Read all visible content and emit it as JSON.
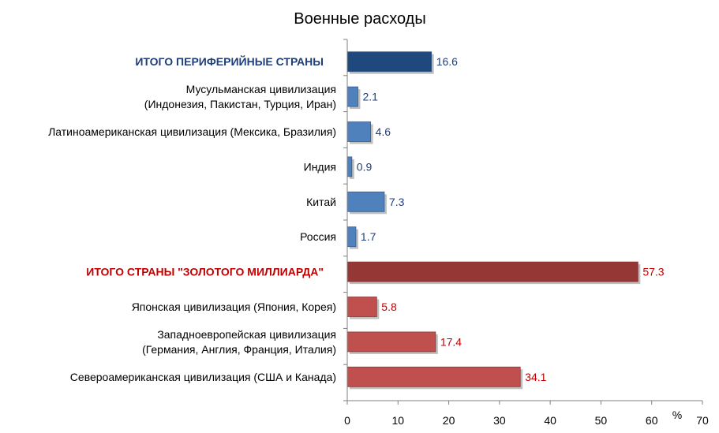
{
  "chart_data": {
    "type": "bar",
    "orientation": "horizontal",
    "title": "Военные расходы",
    "unit_label": "%",
    "xlim": [
      0,
      70
    ],
    "x_ticks": [
      "0",
      "10",
      "20",
      "30",
      "40",
      "50",
      "60",
      "70"
    ],
    "grid": false,
    "categories": [
      {
        "lines": [
          "ИТОГО ПЕРИФЕРИЙНЫЕ  СТРАНЫ"
        ],
        "value": 16.6,
        "label": "16.6",
        "style": "total-blue"
      },
      {
        "lines": [
          "Мусульманская цивилизация",
          "(Индонезия, Пакистан, Турция, Иран)"
        ],
        "value": 2.1,
        "label": "2.1",
        "style": "blue"
      },
      {
        "lines": [
          "Латиноамериканская цивилизация (Мексика, Бразилия)"
        ],
        "value": 4.6,
        "label": "4.6",
        "style": "blue"
      },
      {
        "lines": [
          "Индия"
        ],
        "value": 0.9,
        "label": "0.9",
        "style": "blue"
      },
      {
        "lines": [
          "Китай"
        ],
        "value": 7.3,
        "label": "7.3",
        "style": "blue"
      },
      {
        "lines": [
          "Россия"
        ],
        "value": 1.7,
        "label": "1.7",
        "style": "blue"
      },
      {
        "lines": [
          "ИТОГО СТРАНЫ  \"ЗОЛОТОГО  МИЛЛИАРДА\""
        ],
        "value": 57.3,
        "label": "57.3",
        "style": "total-red"
      },
      {
        "lines": [
          "Японская цивилизация (Япония, Корея)"
        ],
        "value": 5.8,
        "label": "5.8",
        "style": "red"
      },
      {
        "lines": [
          "Западноевропейская цивилизация",
          "(Германия, Англия, Франция, Италия)"
        ],
        "value": 17.4,
        "label": "17.4",
        "style": "red"
      },
      {
        "lines": [
          "Североамериканская цивилизация (США и Канада)"
        ],
        "value": 34.1,
        "label": "34.1",
        "style": "red"
      }
    ],
    "colors": {
      "total-blue": "#1F497D",
      "blue": "#4F81BD",
      "total-red": "#953735",
      "red": "#C0504D",
      "label-blue": "#1F3E7A",
      "label-red": "#C00000"
    }
  }
}
